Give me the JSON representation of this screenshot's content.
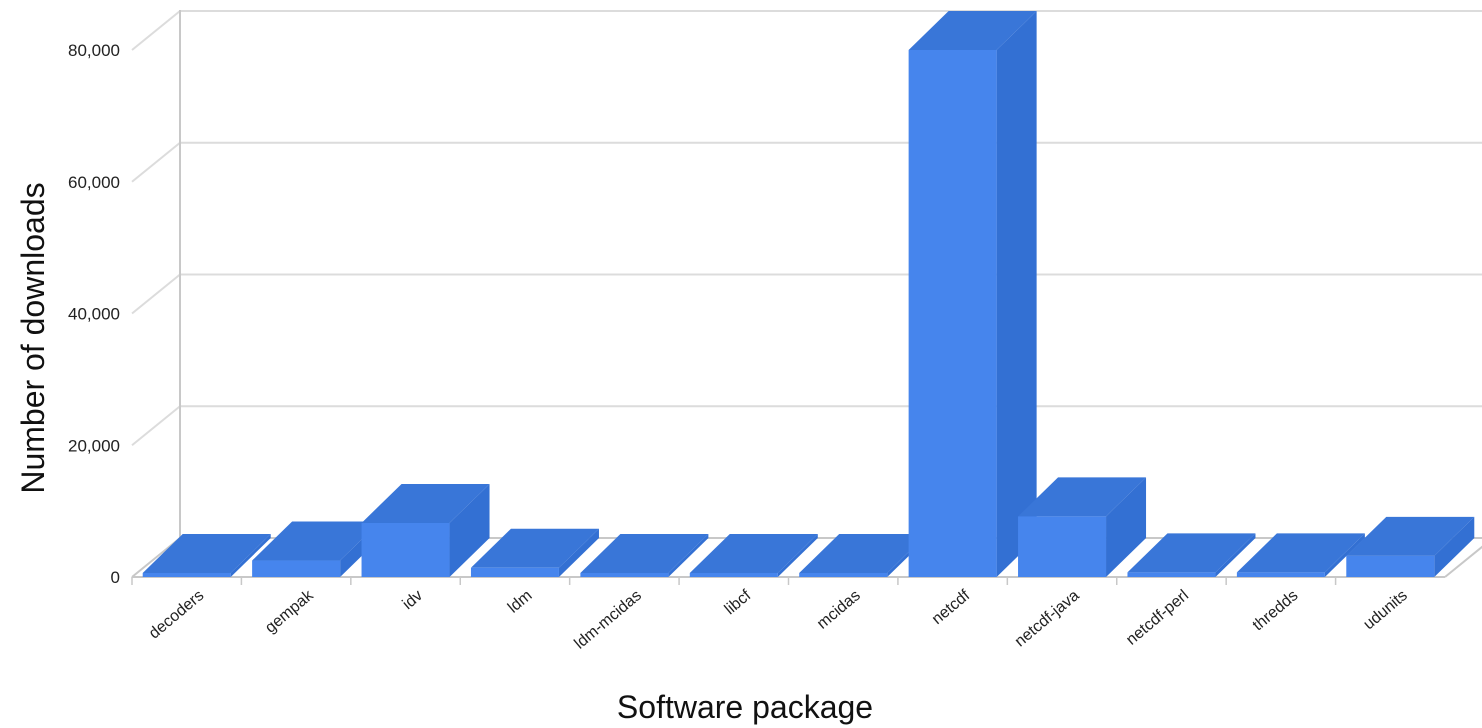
{
  "chart_data": {
    "type": "bar",
    "title": "",
    "xlabel": "Software package",
    "ylabel": "Number of downloads",
    "categories": [
      "decoders",
      "gempak",
      "idv",
      "ldm",
      "ldm-mcidas",
      "libcf",
      "mcidas",
      "netcdf",
      "netcdf-java",
      "netcdf-perl",
      "thredds",
      "udunits"
    ],
    "values": [
      500,
      2500,
      8200,
      1400,
      150,
      150,
      150,
      80000,
      9200,
      700,
      700,
      3200
    ],
    "ylim": [
      0,
      80000
    ],
    "yticks": [
      "0",
      "20,000",
      "40,000",
      "60,000",
      "80,000"
    ],
    "ytick_values": [
      0,
      20000,
      40000,
      60000,
      80000
    ],
    "grid": true,
    "three_d": true,
    "colors": {
      "front": "#4685ed",
      "top": "#3976d8",
      "side": "#3370d3",
      "grid": "#dcdcdc",
      "axis": "#c8c8c8"
    }
  }
}
